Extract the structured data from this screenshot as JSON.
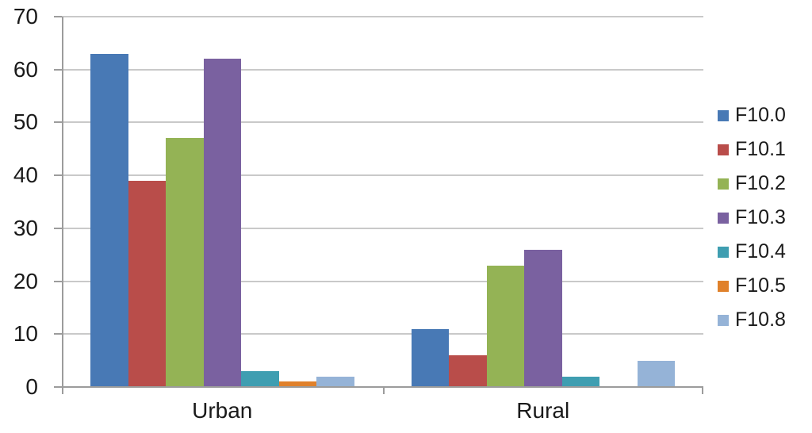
{
  "chart_data": {
    "type": "bar",
    "categories": [
      "Urban",
      "Rural"
    ],
    "series": [
      {
        "name": "F10.0",
        "color": "#4879B5",
        "values": [
          63,
          11
        ]
      },
      {
        "name": "F10.1",
        "color": "#B94D4A",
        "values": [
          39,
          6
        ]
      },
      {
        "name": "F10.2",
        "color": "#94B355",
        "values": [
          47,
          23
        ]
      },
      {
        "name": "F10.3",
        "color": "#7A61A0",
        "values": [
          62,
          26
        ]
      },
      {
        "name": "F10.4",
        "color": "#3F9EB1",
        "values": [
          3,
          2
        ]
      },
      {
        "name": "F10.5",
        "color": "#E0812B",
        "values": [
          1,
          0
        ]
      },
      {
        "name": "F10.8",
        "color": "#95B3D7",
        "values": [
          2,
          5
        ]
      }
    ],
    "title": "",
    "xlabel": "",
    "ylabel": "",
    "ylim": [
      0,
      70
    ],
    "yticks": [
      0,
      10,
      20,
      30,
      40,
      50,
      60,
      70
    ],
    "grid": true,
    "legend_position": "right"
  },
  "colors": {
    "gridline": "#C9C9C9",
    "axis": "#9C9C9C",
    "text": "#1A1A1A",
    "background": "#FFFFFF"
  }
}
